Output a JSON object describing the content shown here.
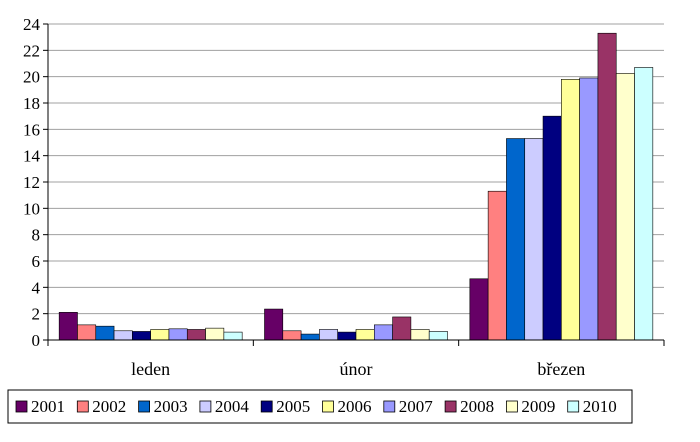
{
  "chart_data": {
    "type": "bar",
    "title": "",
    "xlabel": "",
    "ylabel": "",
    "ylim": [
      0,
      24
    ],
    "yticks": [
      0,
      2,
      4,
      6,
      8,
      10,
      12,
      14,
      16,
      18,
      20,
      22,
      24
    ],
    "grid": true,
    "legend_position": "bottom",
    "categories": [
      "leden",
      "únor",
      "březen"
    ],
    "series": [
      {
        "name": "2001",
        "color": "#660066",
        "values": [
          2.1,
          2.35,
          4.65
        ]
      },
      {
        "name": "2002",
        "color": "#ff8080",
        "values": [
          1.15,
          0.7,
          11.3
        ]
      },
      {
        "name": "2003",
        "color": "#0066cc",
        "values": [
          1.05,
          0.45,
          15.3
        ]
      },
      {
        "name": "2004",
        "color": "#ccccff",
        "values": [
          0.7,
          0.8,
          15.3
        ]
      },
      {
        "name": "2005",
        "color": "#000080",
        "values": [
          0.65,
          0.6,
          17.0
        ]
      },
      {
        "name": "2006",
        "color": "#ffff99",
        "values": [
          0.8,
          0.8,
          19.8
        ]
      },
      {
        "name": "2007",
        "color": "#9999ff",
        "values": [
          0.85,
          1.15,
          19.9
        ]
      },
      {
        "name": "2008",
        "color": "#993366",
        "values": [
          0.8,
          1.75,
          23.3
        ]
      },
      {
        "name": "2009",
        "color": "#ffffcc",
        "values": [
          0.9,
          0.8,
          20.25
        ]
      },
      {
        "name": "2010",
        "color": "#ccffff",
        "values": [
          0.6,
          0.65,
          20.7
        ]
      }
    ]
  }
}
